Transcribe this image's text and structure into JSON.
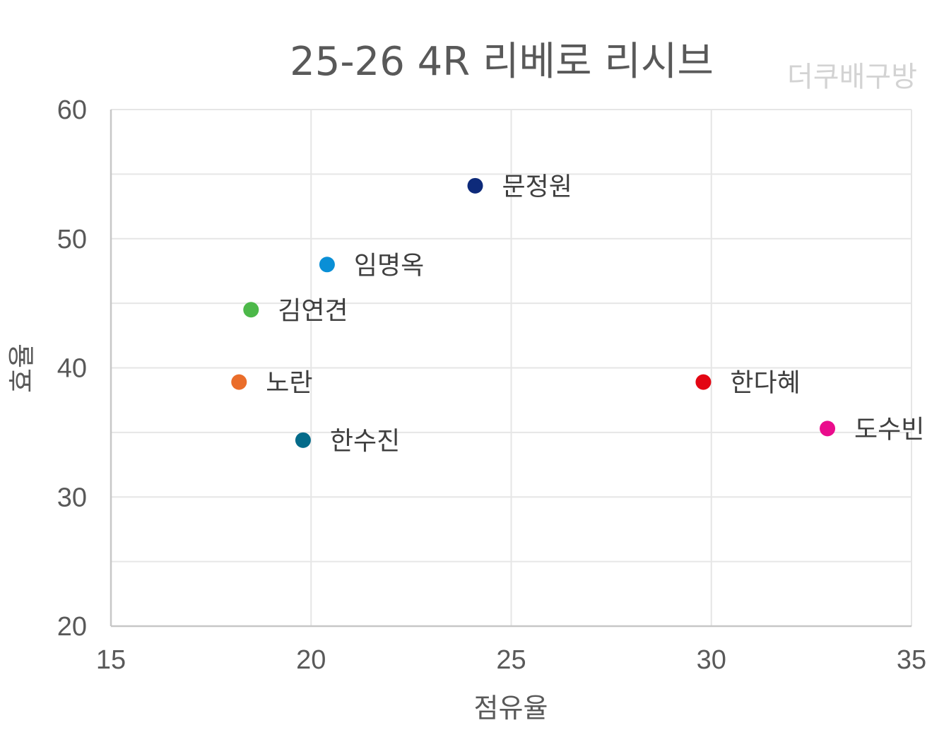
{
  "chart_data": {
    "type": "scatter",
    "title": "25-26 4R 리베로 리시브",
    "watermark": "더쿠배구방",
    "xlabel": "점유율",
    "ylabel": "효율",
    "xlim": [
      15,
      35
    ],
    "ylim": [
      20,
      60
    ],
    "xticks": [
      15,
      20,
      25,
      30,
      35
    ],
    "yticks": [
      20,
      30,
      40,
      50,
      60
    ],
    "grid": true,
    "points": [
      {
        "label": "문정원",
        "x": 24.1,
        "y": 54.1,
        "color": "#0d2a7a"
      },
      {
        "label": "임명옥",
        "x": 20.4,
        "y": 48.0,
        "color": "#0a8fd6"
      },
      {
        "label": "김연견",
        "x": 18.5,
        "y": 44.5,
        "color": "#4cb849"
      },
      {
        "label": "노란",
        "x": 18.2,
        "y": 38.9,
        "color": "#ea6d2a"
      },
      {
        "label": "한수진",
        "x": 19.8,
        "y": 34.4,
        "color": "#046b8a"
      },
      {
        "label": "한다혜",
        "x": 29.8,
        "y": 38.9,
        "color": "#e30613"
      },
      {
        "label": "도수빈",
        "x": 32.9,
        "y": 35.3,
        "color": "#ea0c8c"
      }
    ]
  }
}
